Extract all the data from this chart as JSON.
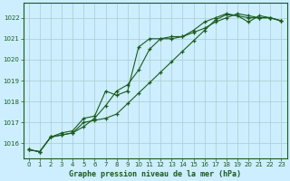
{
  "title": "Graphe pression niveau de la mer (hPa)",
  "bg_color": "#cceeff",
  "grid_color": "#aacccc",
  "line_color": "#1a5c1a",
  "xlim": [
    -0.5,
    23.5
  ],
  "ylim": [
    1015.3,
    1022.7
  ],
  "yticks": [
    1016,
    1017,
    1018,
    1019,
    1020,
    1021,
    1022
  ],
  "xticks": [
    0,
    1,
    2,
    3,
    4,
    5,
    6,
    7,
    8,
    9,
    10,
    11,
    12,
    13,
    14,
    15,
    16,
    17,
    18,
    19,
    20,
    21,
    22,
    23
  ],
  "series": [
    [
      1015.7,
      1015.6,
      1016.3,
      1016.4,
      1016.5,
      1016.8,
      1017.2,
      1017.8,
      1018.5,
      1018.8,
      1019.5,
      1020.5,
      1021.0,
      1021.1,
      1021.1,
      1021.4,
      1021.8,
      1022.0,
      1022.2,
      1022.1,
      1021.8,
      1022.1,
      1022.0,
      1021.85
    ],
    [
      1015.7,
      1015.6,
      1016.3,
      1016.5,
      1016.6,
      1017.2,
      1017.3,
      1018.5,
      1018.3,
      1018.5,
      1020.6,
      1021.0,
      1021.0,
      1021.0,
      1021.1,
      1021.3,
      1021.5,
      1021.8,
      1022.0,
      1022.2,
      1022.1,
      1022.0,
      1022.0,
      1021.85
    ],
    [
      1015.7,
      1015.6,
      1016.3,
      1016.4,
      1016.5,
      1017.0,
      1017.1,
      1017.2,
      1017.4,
      1017.9,
      1018.4,
      1018.9,
      1019.4,
      1019.9,
      1020.4,
      1020.9,
      1021.4,
      1021.9,
      1022.15,
      1022.1,
      1022.0,
      1022.0,
      1022.0,
      1021.85
    ]
  ]
}
